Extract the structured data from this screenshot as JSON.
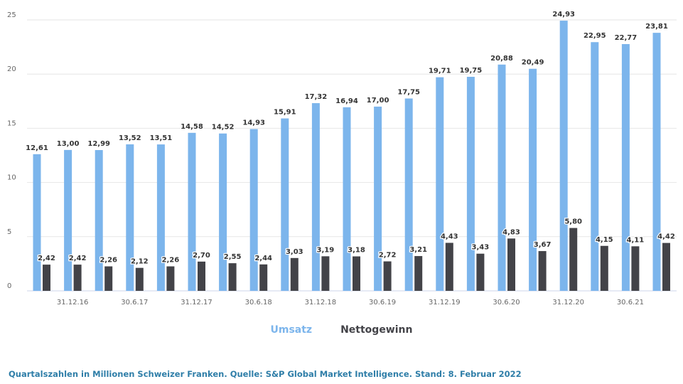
{
  "chart_data": {
    "type": "bar",
    "x_ticks": [
      "31.12.16",
      "30.6.17",
      "31.12.17",
      "30.6.18",
      "31.12.18",
      "30.6.19",
      "31.12.19",
      "30.6.20",
      "31.12.20",
      "30.6.21"
    ],
    "y_ticks": [
      "0",
      "5",
      "10",
      "15",
      "20",
      "25"
    ],
    "ylim": [
      0,
      25
    ],
    "grid": true,
    "legend_position": "bottom-center",
    "series": [
      {
        "name": "Umsatz",
        "color": "#7cb5ec",
        "values": [
          12.61,
          13.0,
          12.99,
          13.52,
          13.51,
          14.58,
          14.52,
          14.93,
          15.91,
          17.32,
          16.94,
          17.0,
          17.75,
          19.71,
          19.75,
          20.88,
          20.49,
          24.93,
          22.95,
          22.77,
          23.81
        ],
        "labels": [
          "12,61",
          "13,00",
          "12,99",
          "13,52",
          "13,51",
          "14,58",
          "14,52",
          "14,93",
          "15,91",
          "17,32",
          "16,94",
          "17,00",
          "17,75",
          "19,71",
          "19,75",
          "20,88",
          "20,49",
          "24,93",
          "22,95",
          "22,77",
          "23,81"
        ]
      },
      {
        "name": "Nettogewinn",
        "color": "#434348",
        "values": [
          2.42,
          2.42,
          2.26,
          2.12,
          2.26,
          2.7,
          2.55,
          2.44,
          3.03,
          3.19,
          3.18,
          2.72,
          3.21,
          4.43,
          3.43,
          4.83,
          3.67,
          5.8,
          4.15,
          4.11,
          4.42
        ],
        "labels": [
          "2,42",
          "2,42",
          "2,26",
          "2,12",
          "2,26",
          "2,70",
          "2,55",
          "2,44",
          "3,03",
          "3,19",
          "3,18",
          "2,72",
          "3,21",
          "4,43",
          "3,43",
          "4,83",
          "3,67",
          "5,80",
          "4,15",
          "4,11",
          "4,42"
        ]
      }
    ]
  },
  "footer": "Quartalszahlen in Millionen Schweizer Franken. Quelle:  S&P Global Market Intelligence. Stand: 8. Februar 2022"
}
